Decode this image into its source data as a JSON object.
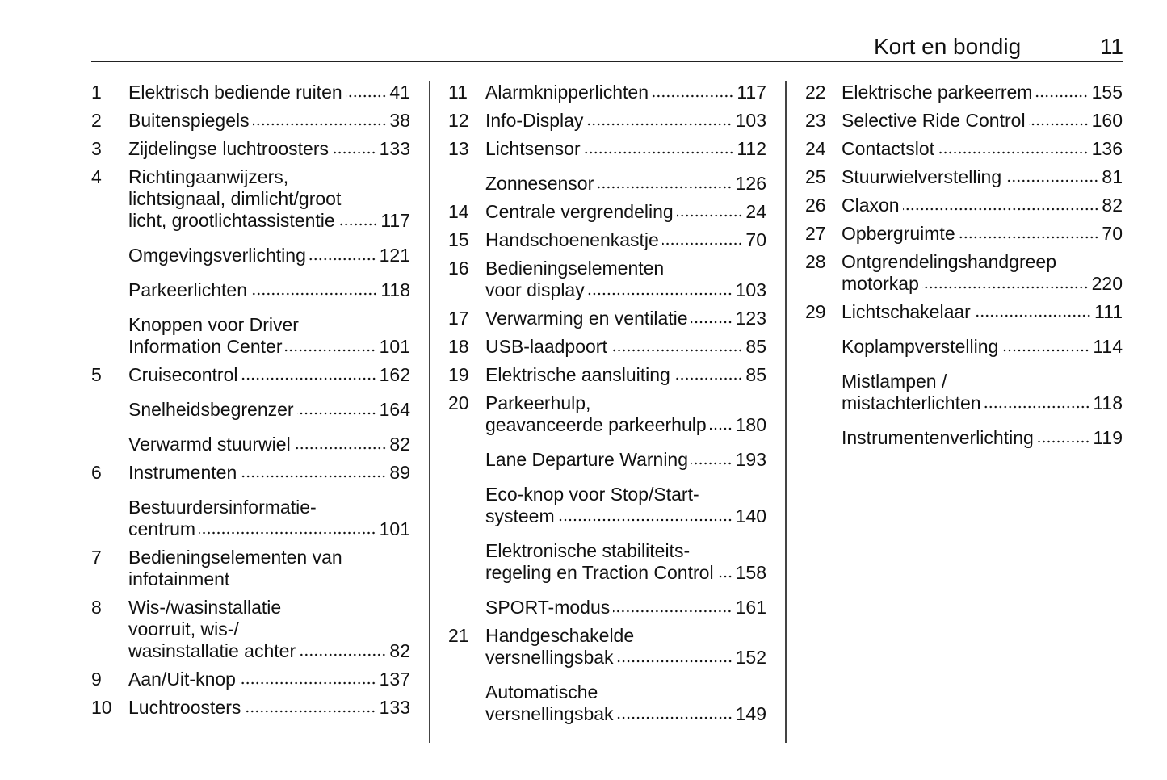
{
  "header": {
    "title": "Kort en bondig",
    "page_number": "11"
  },
  "columns": [
    {
      "entries": [
        {
          "number": "1",
          "lines": [
            "Elektrisch bediende ruiten"
          ],
          "page": "41"
        },
        {
          "number": "2",
          "lines": [
            "Buitenspiegels"
          ],
          "page": "38"
        },
        {
          "number": "3",
          "lines": [
            "Zijdelingse luchtroosters"
          ],
          "page": "133"
        },
        {
          "number": "4",
          "lines": [
            "Richtingaanwijzers,",
            "lichtsignaal, dimlicht/groot",
            "licht, grootlichtassistentie"
          ],
          "page": "117"
        },
        {
          "lines": [
            "Omgevingsverlichting"
          ],
          "page": "121"
        },
        {
          "lines": [
            "Parkeerlichten"
          ],
          "page": "118"
        },
        {
          "lines": [
            "Knoppen voor Driver",
            "Information Center"
          ],
          "page": "101"
        },
        {
          "number": "5",
          "lines": [
            "Cruisecontrol"
          ],
          "page": "162"
        },
        {
          "lines": [
            "Snelheidsbegrenzer"
          ],
          "page": "164"
        },
        {
          "lines": [
            "Verwarmd stuurwiel"
          ],
          "page": "82"
        },
        {
          "number": "6",
          "lines": [
            "Instrumenten"
          ],
          "page": "89"
        },
        {
          "lines": [
            "Bestuurdersinformatie-",
            "centrum"
          ],
          "page": "101"
        },
        {
          "number": "7",
          "lines": [
            "Bedieningselementen van",
            "infotainment"
          ]
        },
        {
          "number": "8",
          "lines": [
            "Wis-/wasinstallatie",
            "voorruit, wis-/",
            "wasinstallatie achter"
          ],
          "page": "82"
        },
        {
          "number": "9",
          "lines": [
            "Aan/Uit-knop"
          ],
          "page": "137"
        },
        {
          "number": "10",
          "lines": [
            "Luchtroosters"
          ],
          "page": "133"
        }
      ]
    },
    {
      "entries": [
        {
          "number": "11",
          "lines": [
            "Alarmknipperlichten"
          ],
          "page": "117"
        },
        {
          "number": "12",
          "lines": [
            "Info-Display"
          ],
          "page": "103"
        },
        {
          "number": "13",
          "lines": [
            "Lichtsensor"
          ],
          "page": "112"
        },
        {
          "lines": [
            "Zonnesensor"
          ],
          "page": "126"
        },
        {
          "number": "14",
          "lines": [
            "Centrale vergrendeling"
          ],
          "page": "24"
        },
        {
          "number": "15",
          "lines": [
            "Handschoenenkastje"
          ],
          "page": "70"
        },
        {
          "number": "16",
          "lines": [
            "Bedieningselementen",
            "voor display"
          ],
          "page": "103"
        },
        {
          "number": "17",
          "lines": [
            "Verwarming en ventilatie"
          ],
          "page": "123"
        },
        {
          "number": "18",
          "lines": [
            "USB-laadpoort"
          ],
          "page": "85"
        },
        {
          "number": "19",
          "lines": [
            "Elektrische aansluiting"
          ],
          "page": "85"
        },
        {
          "number": "20",
          "lines": [
            "Parkeerhulp,",
            "geavanceerde parkeerhulp"
          ],
          "page": "180"
        },
        {
          "lines": [
            "Lane Departure Warning"
          ],
          "page": "193"
        },
        {
          "lines": [
            "Eco-knop voor Stop/Start-",
            "systeem"
          ],
          "page": "140"
        },
        {
          "lines": [
            "Elektronische stabiliteits-",
            "regeling en Traction Control"
          ],
          "page": "158"
        },
        {
          "lines": [
            "SPORT-modus"
          ],
          "page": "161"
        },
        {
          "number": "21",
          "lines": [
            "Handgeschakelde",
            "versnellingsbak"
          ],
          "page": "152"
        },
        {
          "lines": [
            "Automatische",
            "versnellingsbak"
          ],
          "page": "149"
        }
      ]
    },
    {
      "entries": [
        {
          "number": "22",
          "lines": [
            "Elektrische parkeerrem"
          ],
          "page": "155"
        },
        {
          "number": "23",
          "lines": [
            "Selective Ride Control"
          ],
          "page": "160"
        },
        {
          "number": "24",
          "lines": [
            "Contactslot"
          ],
          "page": "136"
        },
        {
          "number": "25",
          "lines": [
            "Stuurwielverstelling"
          ],
          "page": "81"
        },
        {
          "number": "26",
          "lines": [
            "Claxon"
          ],
          "page": "82"
        },
        {
          "number": "27",
          "lines": [
            "Opbergruimte"
          ],
          "page": "70"
        },
        {
          "number": "28",
          "lines": [
            "Ontgrendelingshandgreep",
            "motorkap"
          ],
          "page": "220"
        },
        {
          "number": "29",
          "lines": [
            "Lichtschakelaar"
          ],
          "page": "111"
        },
        {
          "lines": [
            "Koplampverstelling"
          ],
          "page": "114"
        },
        {
          "lines": [
            "Mistlampen /",
            "mistachterlichten"
          ],
          "page": "118"
        },
        {
          "lines": [
            "Instrumentenverlichting"
          ],
          "page": "119"
        }
      ]
    }
  ]
}
